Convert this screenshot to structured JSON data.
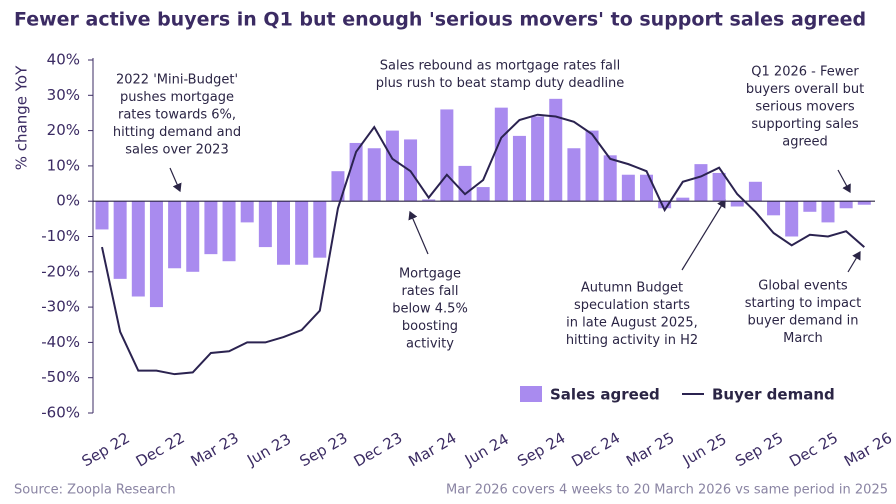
{
  "chart_data": {
    "type": "bar-line",
    "title": "Fewer active buyers in Q1 but enough 'serious movers' to support sales agreed",
    "y_label": "% change YoY",
    "source": "Source: Zoopla Research",
    "footnote": "Mar 2026 covers 4 weeks to 20 March 2026 vs same period in 2025",
    "categories": [
      "Sep 22",
      null,
      null,
      "Dec 22",
      null,
      null,
      "Mar 23",
      null,
      null,
      "Jun 23",
      null,
      null,
      "Sep 23",
      null,
      null,
      "Dec 23",
      null,
      null,
      "Mar 24",
      null,
      null,
      "Jun 24",
      null,
      null,
      "Sep 24",
      null,
      null,
      "Dec 24",
      null,
      null,
      "Mar 25",
      null,
      null,
      "Jun 25",
      null,
      null,
      "Sep 25",
      null,
      null,
      "Dec 25",
      null,
      null,
      "Mar 26"
    ],
    "series": [
      {
        "name": "Sales agreed",
        "color": "#a98bef",
        "kind": "bar",
        "values": [
          -8,
          -22,
          -27,
          -30,
          -19,
          -20,
          -15,
          -17,
          -6,
          -13,
          -18,
          -18,
          -16,
          8.5,
          16.5,
          15,
          20,
          17.5,
          0.5,
          26,
          10,
          4,
          26.5,
          18.5,
          24,
          29,
          15,
          20,
          13,
          7.5,
          7.5,
          -2,
          1,
          10.5,
          8,
          -1.5,
          5.5,
          -4,
          -10,
          -3,
          -6,
          -2,
          -1
        ]
      },
      {
        "name": "Buyer demand",
        "color": "#2b2350",
        "kind": "line",
        "values": [
          -13,
          -37,
          -48,
          -48,
          -49,
          -48.5,
          -43,
          -42.5,
          -40,
          -40,
          -38.5,
          -36.5,
          -31,
          -2,
          14,
          21,
          12,
          8.5,
          1,
          7.5,
          2,
          6,
          18,
          23,
          24.5,
          24,
          22.5,
          19,
          12,
          10.5,
          8.5,
          -2.5,
          5.5,
          7,
          9.5,
          2,
          -3,
          -9,
          -12.5,
          -9.5,
          -10,
          -8.5,
          -13
        ]
      }
    ],
    "ylim": [
      -60,
      40
    ],
    "yticks": [
      {
        "value": -60,
        "label": "-60%"
      },
      {
        "value": -50,
        "label": "-50%"
      },
      {
        "value": -40,
        "label": "-40%"
      },
      {
        "value": -30,
        "label": "-30%"
      },
      {
        "value": -20,
        "label": "-20%"
      },
      {
        "value": -10,
        "label": "-10%"
      },
      {
        "value": 0,
        "label": "0%"
      },
      {
        "value": 10,
        "label": "10%"
      },
      {
        "value": 20,
        "label": "20%"
      },
      {
        "value": 30,
        "label": "30%"
      },
      {
        "value": 40,
        "label": "40%"
      }
    ],
    "annotations": [
      {
        "lines": [
          "2022 'Mini-Budget'",
          "pushes mortgage",
          "rates towards 6%,",
          "hitting demand and",
          "sales over 2023"
        ]
      },
      {
        "lines": [
          "Sales rebound as mortgage rates fall",
          "plus rush to beat stamp duty deadline"
        ]
      },
      {
        "lines": [
          "Q1 2026 - Fewer",
          "buyers overall but",
          "serious movers",
          "supporting sales",
          "agreed"
        ]
      },
      {
        "lines": [
          "Mortgage",
          "rates fall",
          "below 4.5%",
          "boosting",
          "activity"
        ]
      },
      {
        "lines": [
          "Autumn Budget",
          "speculation starts",
          "in late August 2025,",
          "hitting activity in H2"
        ]
      },
      {
        "lines": [
          "Global events",
          "starting to impact",
          "buyer demand in",
          "March"
        ]
      }
    ]
  }
}
